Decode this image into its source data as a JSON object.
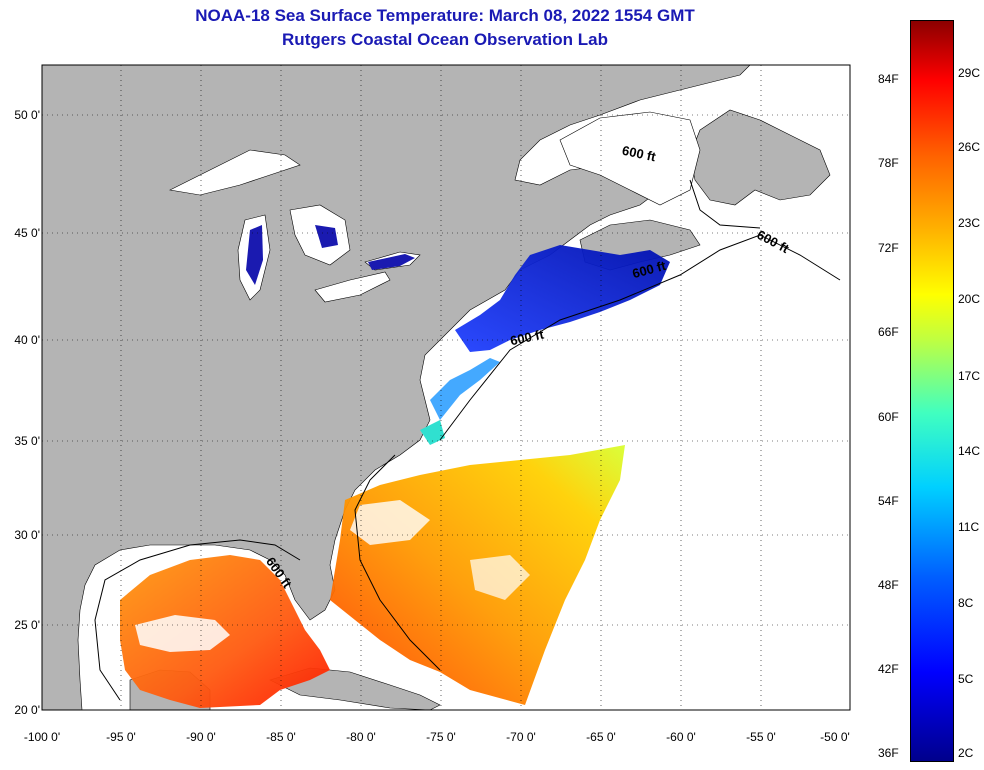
{
  "title": {
    "line1": "NOAA-18 Sea Surface Temperature:  March 08, 2022 1554 GMT",
    "line2": "Rutgers Coastal Ocean Observation Lab"
  },
  "axes": {
    "latitude_labels": [
      "50 0'",
      "45 0'",
      "40 0'",
      "35 0'",
      "30 0'",
      "25 0'",
      "20 0'"
    ],
    "longitude_labels": [
      "-100 0'",
      "-95 0'",
      "-90 0'",
      "-85 0'",
      "-80 0'",
      "-75 0'",
      "-70 0'",
      "-65 0'",
      "-60 0'",
      "-55 0'",
      "-50 0'"
    ]
  },
  "colorbar": {
    "fahrenheit_labels": [
      "84F",
      "78F",
      "72F",
      "66F",
      "60F",
      "54F",
      "48F",
      "42F",
      "36F"
    ],
    "celsius_labels": [
      "29C",
      "26C",
      "23C",
      "20C",
      "17C",
      "14C",
      "11C",
      "8C",
      "5C",
      "2C"
    ]
  },
  "contour_label": "600 ft",
  "colors": {
    "land": "#b4b4b4",
    "water_nodata": "#ffffff",
    "title": "#1a1ab4",
    "cold": "#1010c0",
    "warm": "#ff4000"
  }
}
